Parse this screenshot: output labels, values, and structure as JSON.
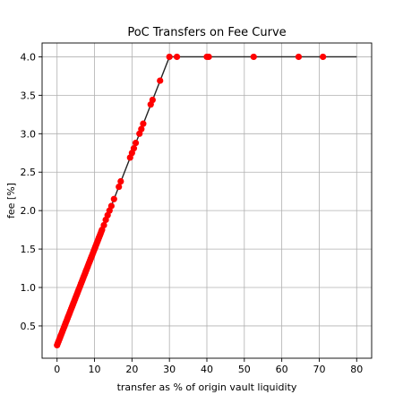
{
  "chart_data": {
    "type": "scatter",
    "title": "PoC Transfers on Fee Curve",
    "xlabel": "transfer as % of origin vault liquidity",
    "ylabel": "fee [%]",
    "xlim": [
      -4,
      84
    ],
    "ylim": [
      0.08,
      4.18
    ],
    "xticks": [
      0,
      10,
      20,
      30,
      40,
      50,
      60,
      70,
      80
    ],
    "yticks": [
      0.5,
      1.0,
      1.5,
      2.0,
      2.5,
      3.0,
      3.5,
      4.0
    ],
    "ytick_labels": [
      "0.5",
      "1.0",
      "1.5",
      "2.0",
      "2.5",
      "3.0",
      "3.5",
      "4.0"
    ],
    "grid": true,
    "series": [
      {
        "kind": "line",
        "color": "#222222",
        "x": [
          0,
          30,
          80
        ],
        "y": [
          0.25,
          4.0,
          4.0
        ]
      },
      {
        "kind": "scatter",
        "color": "#ff0000",
        "x": [
          0,
          0.2,
          0.4,
          0.6,
          0.8,
          1.0,
          1.2,
          1.4,
          1.6,
          1.8,
          2.0,
          2.2,
          2.4,
          2.6,
          2.8,
          3.0,
          3.2,
          3.4,
          3.6,
          3.8,
          4.0,
          4.2,
          4.4,
          4.6,
          4.8,
          5.0,
          5.2,
          5.4,
          5.6,
          5.8,
          6.0,
          6.2,
          6.4,
          6.6,
          6.8,
          7.0,
          7.2,
          7.4,
          7.6,
          7.8,
          8.0,
          8.2,
          8.4,
          8.6,
          8.8,
          9.0,
          9.2,
          9.4,
          9.6,
          9.8,
          10.0,
          10.2,
          10.4,
          10.6,
          10.8,
          11.0,
          11.2,
          11.4,
          11.6,
          11.8,
          12.0,
          12.5,
          13.0,
          13.5,
          14.0,
          14.5,
          15.2,
          16.5,
          17.0,
          19.5,
          20.0,
          20.5,
          21.0,
          22.0,
          22.5,
          23.0,
          25.0,
          25.5,
          27.5,
          30.0,
          32.0,
          40.0,
          40.5,
          52.5,
          64.5,
          71.0
        ],
        "y": [
          0.25,
          0.275,
          0.3,
          0.325,
          0.35,
          0.375,
          0.4,
          0.425,
          0.45,
          0.475,
          0.5,
          0.525,
          0.55,
          0.575,
          0.6,
          0.625,
          0.65,
          0.675,
          0.7,
          0.725,
          0.75,
          0.775,
          0.8,
          0.825,
          0.85,
          0.875,
          0.9,
          0.925,
          0.95,
          0.975,
          1.0,
          1.025,
          1.05,
          1.075,
          1.1,
          1.125,
          1.15,
          1.175,
          1.2,
          1.225,
          1.25,
          1.275,
          1.3,
          1.325,
          1.35,
          1.375,
          1.4,
          1.425,
          1.45,
          1.475,
          1.5,
          1.525,
          1.55,
          1.575,
          1.6,
          1.625,
          1.65,
          1.675,
          1.7,
          1.725,
          1.75,
          1.81,
          1.88,
          1.94,
          2.0,
          2.06,
          2.15,
          2.31,
          2.38,
          2.69,
          2.75,
          2.81,
          2.88,
          3.0,
          3.06,
          3.13,
          3.38,
          3.44,
          3.69,
          4.0,
          4.0,
          4.0,
          4.0,
          4.0,
          4.0,
          4.0
        ]
      }
    ]
  }
}
